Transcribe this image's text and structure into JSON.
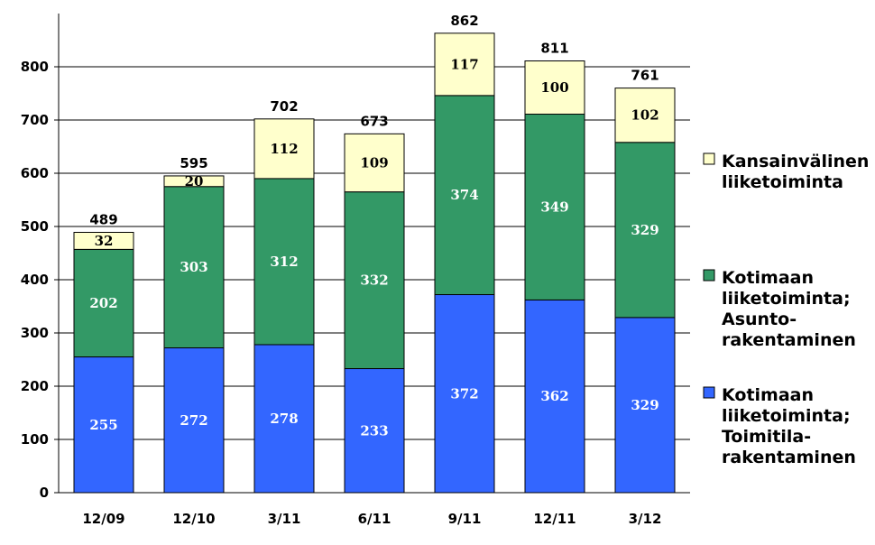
{
  "chart_data": {
    "type": "bar",
    "stacked": true,
    "categories": [
      "12/09",
      "12/10",
      "3/11",
      "6/11",
      "9/11",
      "12/11",
      "3/12"
    ],
    "series": [
      {
        "name": "Kotimaan liiketoiminta; Toimitila-rakentaminen",
        "legend_lines": [
          "Kotimaan",
          "liiketoiminta;",
          "Toimitila-",
          "rakentaminen"
        ],
        "color": "#3366ff",
        "label_color": "#ffffff",
        "values": [
          255,
          272,
          278,
          233,
          372,
          362,
          329
        ]
      },
      {
        "name": "Kotimaan liiketoiminta; Asunto-rakentaminen",
        "legend_lines": [
          "Kotimaan",
          "liiketoiminta;",
          "Asunto-",
          "rakentaminen"
        ],
        "color": "#339966",
        "label_color": "#ffffff",
        "values": [
          202,
          303,
          312,
          332,
          374,
          349,
          329
        ]
      },
      {
        "name": "Kansainvälinen liiketoiminta",
        "legend_lines": [
          "Kansainvälinen",
          "liiketoiminta"
        ],
        "color": "#ffffcc",
        "label_color": "#000000",
        "values": [
          32,
          20,
          112,
          109,
          117,
          100,
          102
        ]
      }
    ],
    "totals": [
      489,
      595,
      702,
      673,
      862,
      811,
      761
    ],
    "yticks": [
      0,
      100,
      200,
      300,
      400,
      500,
      600,
      700,
      800
    ],
    "ylim": [
      0,
      900
    ],
    "grid": true,
    "legend": "right"
  }
}
